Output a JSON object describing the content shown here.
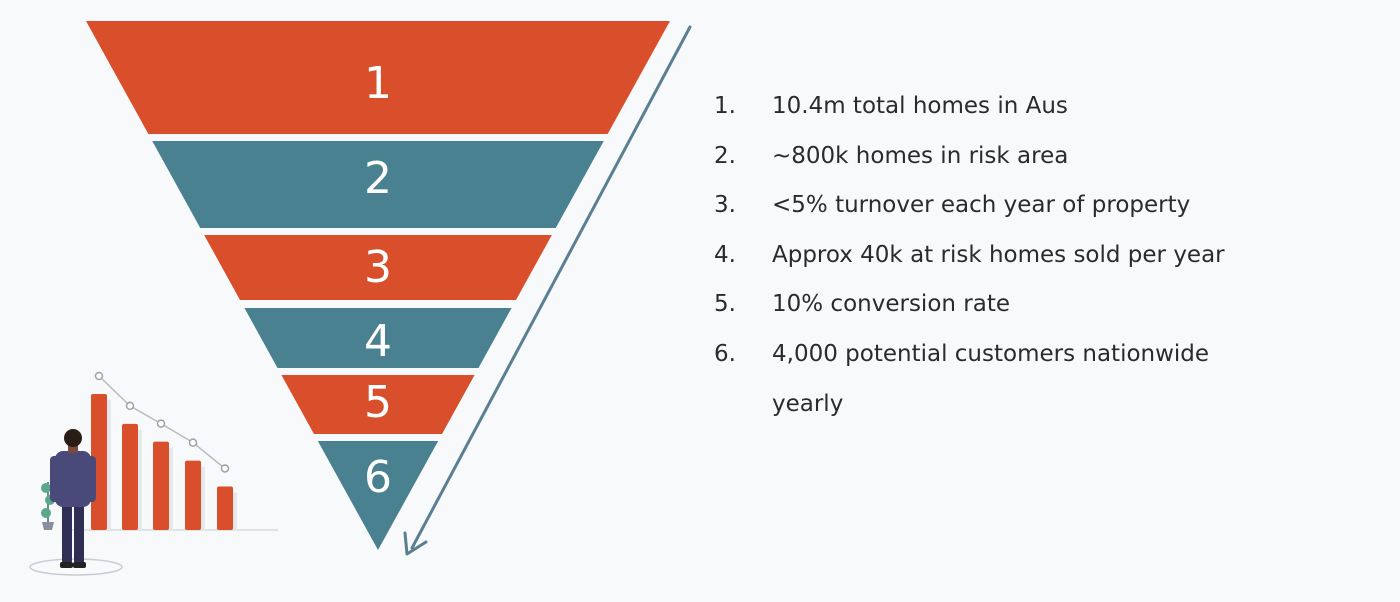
{
  "colors": {
    "orange": "#d94f2b",
    "teal": "#4a8190",
    "arrow": "#5a7f93",
    "background": "#f8f9fb",
    "text": "#2b2b2b",
    "figure_suit": "#4a4a7a",
    "figure_pants": "#2f2f55",
    "plant": "#5aa88a"
  },
  "funnel": {
    "stages": [
      {
        "label": "1",
        "color": "orange"
      },
      {
        "label": "2",
        "color": "teal"
      },
      {
        "label": "3",
        "color": "orange"
      },
      {
        "label": "4",
        "color": "teal"
      },
      {
        "label": "5",
        "color": "orange"
      },
      {
        "label": "6",
        "color": "teal"
      }
    ]
  },
  "legend": {
    "items": [
      {
        "num": "1.",
        "text": "10.4m total homes in Aus"
      },
      {
        "num": "2.",
        "text": "~800k homes in risk area"
      },
      {
        "num": "3.",
        "text": "<5% turnover each year of property"
      },
      {
        "num": "4.",
        "text": "Approx 40k at risk homes sold per year"
      },
      {
        "num": "5.",
        "text": "10% conversion rate"
      },
      {
        "num": "6.",
        "text": "4,000 potential customers nationwide yearly"
      }
    ]
  },
  "illustration": {
    "bar_levels": [
      1.0,
      0.78,
      0.65,
      0.51,
      0.32
    ],
    "icons": [
      "person-icon",
      "bar-chart-icon",
      "plant-icon"
    ]
  }
}
